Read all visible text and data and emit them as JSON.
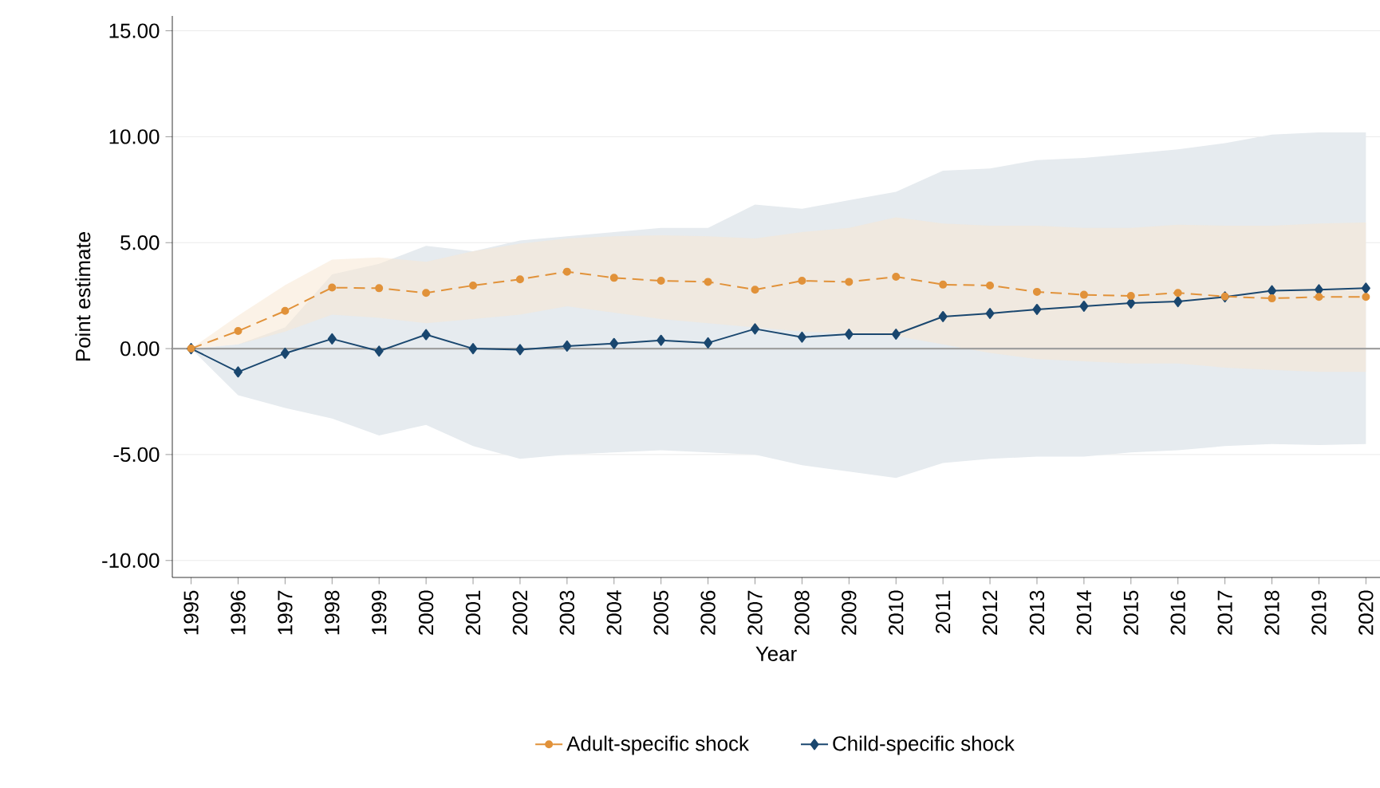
{
  "chart_data": {
    "type": "line",
    "xlabel": "Year",
    "ylabel": "Point estimate",
    "x": [
      1995,
      1996,
      1997,
      1998,
      1999,
      2000,
      2001,
      2002,
      2003,
      2004,
      2005,
      2006,
      2007,
      2008,
      2009,
      2010,
      2011,
      2012,
      2013,
      2014,
      2015,
      2016,
      2017,
      2018,
      2019,
      2020
    ],
    "series": [
      {
        "name": "Adult-specific shock",
        "color": "#e1923a",
        "marker": "circle",
        "line_style": "dashed",
        "values": [
          0,
          0.83,
          1.78,
          2.88,
          2.85,
          2.63,
          2.98,
          3.27,
          3.63,
          3.34,
          3.2,
          3.15,
          2.78,
          3.2,
          3.15,
          3.39,
          3.02,
          2.98,
          2.68,
          2.54,
          2.49,
          2.63,
          2.46,
          2.37,
          2.44,
          2.44
        ],
        "upper": [
          0,
          1.56,
          3.0,
          4.2,
          4.3,
          4.1,
          4.6,
          4.95,
          5.2,
          5.3,
          5.35,
          5.3,
          5.2,
          5.5,
          5.7,
          6.2,
          5.9,
          5.8,
          5.8,
          5.7,
          5.7,
          5.85,
          5.8,
          5.8,
          5.9,
          5.95
        ],
        "lower": [
          0,
          0.2,
          0.8,
          1.6,
          1.45,
          1.2,
          1.4,
          1.6,
          2.0,
          1.7,
          1.4,
          1.2,
          1.0,
          0.8,
          0.7,
          0.6,
          0.2,
          -0.2,
          -0.5,
          -0.6,
          -0.7,
          -0.7,
          -0.9,
          -1.0,
          -1.1,
          -1.1
        ]
      },
      {
        "name": "Child-specific shock",
        "color": "#1a476f",
        "marker": "diamond",
        "line_style": "solid",
        "values": [
          0,
          -1.1,
          -0.22,
          0.46,
          -0.12,
          0.66,
          0,
          -0.05,
          0.12,
          0.24,
          0.39,
          0.27,
          0.93,
          0.54,
          0.68,
          0.68,
          1.51,
          1.66,
          1.85,
          2.0,
          2.15,
          2.22,
          2.44,
          2.73,
          2.78,
          2.85
        ],
        "upper": [
          0,
          0.2,
          1.0,
          3.5,
          4.0,
          4.85,
          4.6,
          5.1,
          5.3,
          5.5,
          5.7,
          5.7,
          6.8,
          6.6,
          7.0,
          7.4,
          8.4,
          8.5,
          8.9,
          9.0,
          9.2,
          9.4,
          9.7,
          10.1,
          10.2,
          10.2
        ],
        "lower": [
          0,
          -2.2,
          -2.8,
          -3.3,
          -4.1,
          -3.6,
          -4.6,
          -5.2,
          -5.0,
          -4.9,
          -4.8,
          -4.9,
          -5.0,
          -5.5,
          -5.8,
          -6.1,
          -5.4,
          -5.2,
          -5.1,
          -5.1,
          -4.9,
          -4.8,
          -4.6,
          -4.5,
          -4.55,
          -4.5
        ]
      }
    ],
    "xlim": [
      1994.6,
      2020.3
    ],
    "ylim": [
      -10.8,
      15.7
    ],
    "xticks": [
      1995,
      1996,
      1997,
      1998,
      1999,
      2000,
      2001,
      2002,
      2003,
      2004,
      2005,
      2006,
      2007,
      2008,
      2009,
      2010,
      2011,
      2012,
      2013,
      2014,
      2015,
      2016,
      2017,
      2018,
      2019,
      2020
    ],
    "yticks": [
      {
        "value": -10,
        "label": "-10.00"
      },
      {
        "value": -5,
        "label": "-5.00"
      },
      {
        "value": 0,
        "label": "0.00"
      },
      {
        "value": 5,
        "label": "5.00"
      },
      {
        "value": 10,
        "label": "10.00"
      },
      {
        "value": 15,
        "label": "15.00"
      }
    ],
    "ref_lines": [
      {
        "axis": "y",
        "value": 0,
        "color": "#a0a0a0"
      }
    ],
    "grid": "y",
    "legend": "bottom"
  }
}
